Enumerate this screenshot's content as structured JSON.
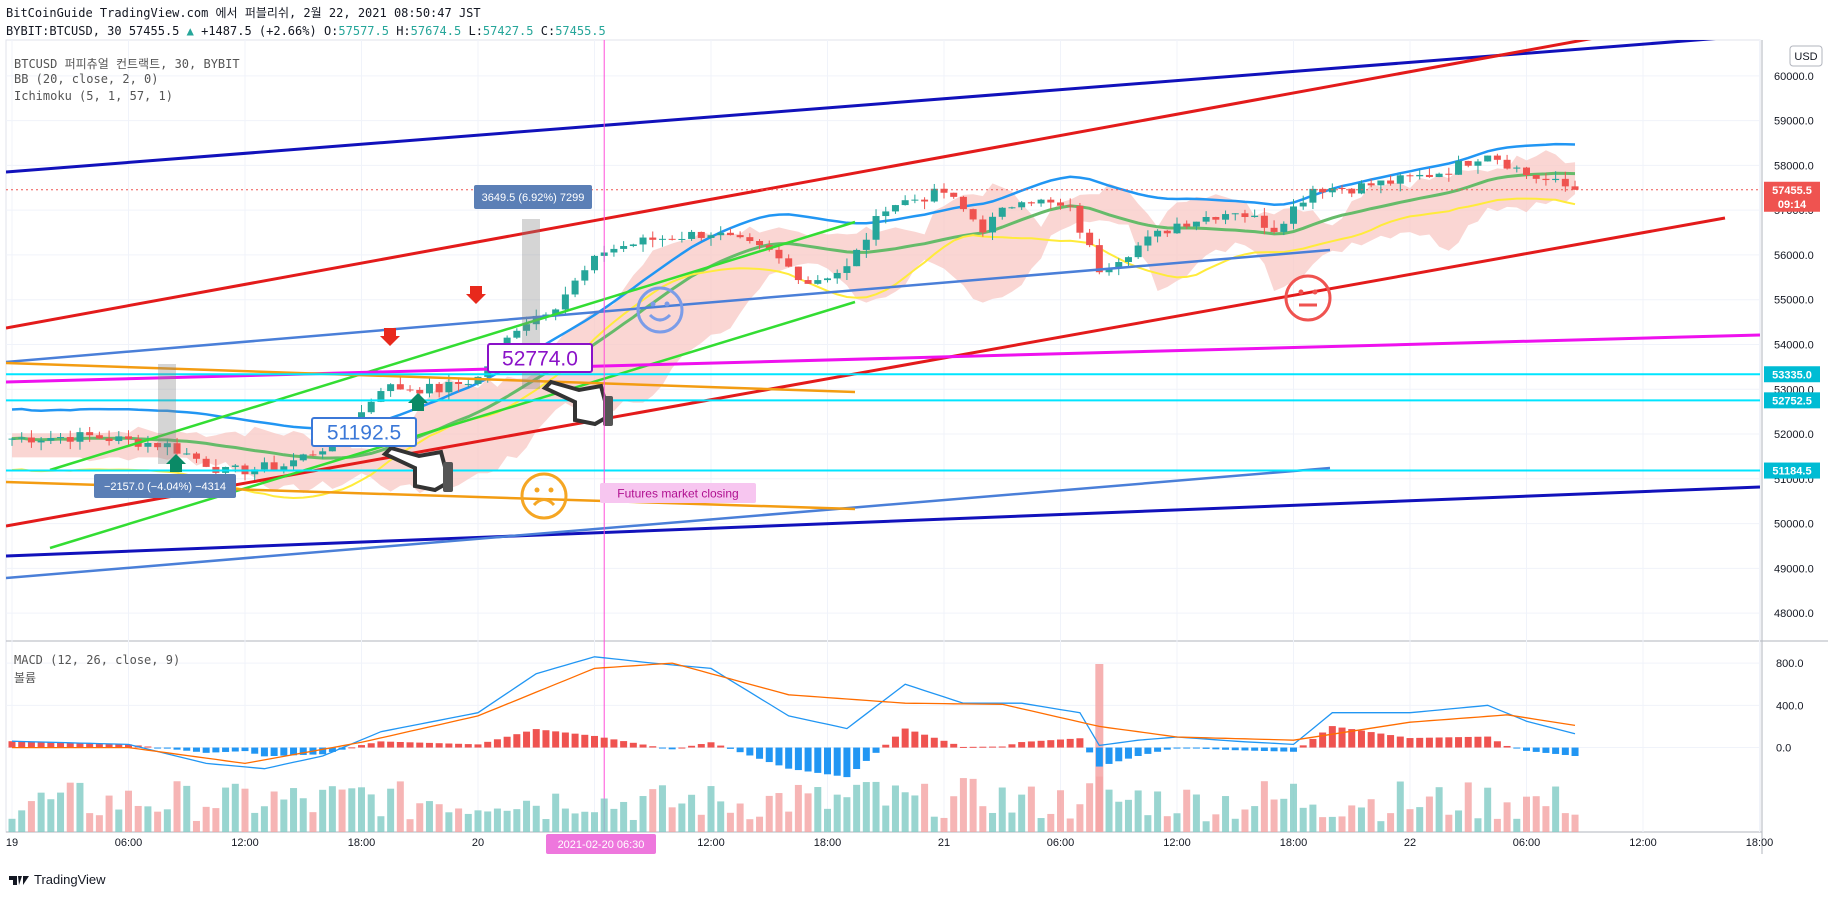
{
  "header": {
    "line1": "BitCoinGuide TradingView.com 에서 퍼블리쉬, 2월 22, 2021 08:50:47 JST",
    "symbol": "BYBIT:BTCUSD, 30",
    "last": "57455.5",
    "change": "+1487.5 (+2.66%)",
    "o_label": "O:",
    "o": "57577.5",
    "h_label": "H:",
    "h": "57674.5",
    "l_label": "L:",
    "l": "57427.5",
    "c_label": "C:",
    "c": "57455.5"
  },
  "legends": {
    "title": "BTCUSD 퍼피츄얼 컨트랙트, 30, BYBIT",
    "bb": "BB (20, close, 2, 0)",
    "ichimoku": "Ichimoku (5, 1, 57, 1)",
    "macd": "MACD (12, 26, close, 9)",
    "volume": "볼륨"
  },
  "currency_button": "USD",
  "price_tags": [
    {
      "value": "57455.5",
      "sub": "09:14",
      "color": "#ef5350"
    },
    {
      "value": "53335.0",
      "color": "#00bcd4"
    },
    {
      "value": "52752.5",
      "color": "#00bcd4"
    },
    {
      "value": "51184.5",
      "color": "#00bcd4"
    }
  ],
  "annotations": {
    "range_up": "3649.5 (6.92%) 7299",
    "range_down": "−2157.0 (−4.04%) −4314",
    "label_52774": "52774.0",
    "label_51192": "51192.5",
    "futures": "Futures market closing",
    "crosshair_time": "2021-02-20   06:30"
  },
  "footer": {
    "brand": "TradingView"
  },
  "colors": {
    "up": "#26a69a",
    "down": "#ef5350",
    "bb_upper": "#2196f3",
    "bb_basis": "#66bb6a",
    "ichimoku_lead": "#ffeb3b",
    "cloud": "#f8c8c4",
    "red_line": "#e31b1b",
    "navy": "#1111bb",
    "steel": "#4a7fd8",
    "green": "#33dd33",
    "magenta": "#ee11ee",
    "orange": "#f39c12",
    "cyan": "#00e5ff",
    "macd": "#2196f3",
    "signal": "#ff6d00",
    "hist_up": "#ef5350",
    "hist_down": "#2196f3",
    "vol_up": "#80cbc4",
    "vol_down": "#f4a3a3"
  },
  "chart_data": [
    {
      "type": "candlestick",
      "title": "BTCUSD 퍼피츄얼 컨트랙트, 30, BYBIT",
      "ylim": [
        47400,
        60800
      ],
      "y_ticks": [
        "48000.0",
        "49000.0",
        "50000.0",
        "51000.0",
        "52000.0",
        "53000.0",
        "54000.0",
        "55000.0",
        "56000.0",
        "57000.0",
        "58000.0",
        "59000.0",
        "60000.0"
      ],
      "x_ticks": [
        "19",
        "06:00",
        "12:00",
        "18:00",
        "20",
        "06:00",
        "12:00",
        "18:00",
        "21",
        "06:00",
        "12:00",
        "18:00",
        "22",
        "06:00",
        "12:00",
        "18:00"
      ],
      "x_ticks_time": [
        "2021-02-19 00:00",
        "2021-02-19 06:00",
        "2021-02-19 12:00",
        "2021-02-19 18:00",
        "2021-02-20 00:00",
        "2021-02-20 06:00",
        "2021-02-20 12:00",
        "2021-02-20 18:00",
        "2021-02-21 00:00",
        "2021-02-21 06:00",
        "2021-02-21 12:00",
        "2021-02-21 18:00",
        "2021-02-22 00:00",
        "2021-02-22 06:00",
        "2021-02-22 12:00",
        "2021-02-22 18:00"
      ],
      "price_keypoints": [
        [
          "2021-02-19 00:00",
          51900
        ],
        [
          "2021-02-19 04:00",
          51950
        ],
        [
          "2021-02-19 08:00",
          51750
        ],
        [
          "2021-02-19 11:00",
          51150
        ],
        [
          "2021-02-19 14:00",
          51300
        ],
        [
          "2021-02-19 17:00",
          51900
        ],
        [
          "2021-02-19 19:00",
          53050
        ],
        [
          "2021-02-19 22:00",
          53000
        ],
        [
          "2021-02-20 00:00",
          53250
        ],
        [
          "2021-02-20 02:00",
          54400
        ],
        [
          "2021-02-20 04:00",
          54900
        ],
        [
          "2021-02-20 06:30",
          56100
        ],
        [
          "2021-02-20 09:00",
          56350
        ],
        [
          "2021-02-20 12:00",
          56500
        ],
        [
          "2021-02-20 15:00",
          56050
        ],
        [
          "2021-02-20 17:00",
          55400
        ],
        [
          "2021-02-20 19:00",
          55700
        ],
        [
          "2021-02-20 21:00",
          57100
        ],
        [
          "2021-02-21 00:00",
          57400
        ],
        [
          "2021-02-21 02:00",
          56600
        ],
        [
          "2021-02-21 04:00",
          57300
        ],
        [
          "2021-02-21 06:30",
          57000
        ],
        [
          "2021-02-21 08:00",
          55700
        ],
        [
          "2021-02-21 10:00",
          56200
        ],
        [
          "2021-02-21 12:00",
          56700
        ],
        [
          "2021-02-21 15:00",
          57000
        ],
        [
          "2021-02-21 17:00",
          56600
        ],
        [
          "2021-02-21 19:00",
          57500
        ],
        [
          "2021-02-21 21:00",
          57500
        ],
        [
          "2021-02-22 00:00",
          57700
        ],
        [
          "2021-02-22 02:00",
          57900
        ],
        [
          "2021-02-22 04:00",
          58300
        ],
        [
          "2021-02-22 06:00",
          57800
        ],
        [
          "2021-02-22 08:30",
          57455
        ]
      ],
      "last_price": 57455.5,
      "horizontal_levels": [
        53335.0,
        52752.5,
        51184.5
      ]
    },
    {
      "type": "line",
      "title": "MACD (12, 26, close, 9)",
      "ylim": [
        -800,
        1000
      ],
      "y_ticks": [
        "800.0",
        "400.0",
        "0.0"
      ],
      "macd_keypoints": [
        [
          "2021-02-19 00:00",
          60
        ],
        [
          "2021-02-19 06:00",
          30
        ],
        [
          "2021-02-19 10:00",
          -150
        ],
        [
          "2021-02-19 13:00",
          -200
        ],
        [
          "2021-02-19 16:00",
          -80
        ],
        [
          "2021-02-19 19:00",
          150
        ],
        [
          "2021-02-20 00:00",
          330
        ],
        [
          "2021-02-20 03:00",
          700
        ],
        [
          "2021-02-20 06:00",
          860
        ],
        [
          "2021-02-20 09:00",
          800
        ],
        [
          "2021-02-20 12:00",
          750
        ],
        [
          "2021-02-20 16:00",
          300
        ],
        [
          "2021-02-20 19:00",
          180
        ],
        [
          "2021-02-20 22:00",
          600
        ],
        [
          "2021-02-21 01:00",
          420
        ],
        [
          "2021-02-21 04:00",
          420
        ],
        [
          "2021-02-21 07:00",
          330
        ],
        [
          "2021-02-21 08:00",
          20
        ],
        [
          "2021-02-21 10:00",
          70
        ],
        [
          "2021-02-21 12:00",
          100
        ],
        [
          "2021-02-21 15:00",
          60
        ],
        [
          "2021-02-21 18:00",
          30
        ],
        [
          "2021-02-21 20:00",
          330
        ],
        [
          "2021-02-22 00:00",
          330
        ],
        [
          "2021-02-22 04:00",
          400
        ],
        [
          "2021-02-22 06:00",
          250
        ],
        [
          "2021-02-22 08:30",
          130
        ]
      ],
      "signal_keypoints": [
        [
          "2021-02-19 00:00",
          0
        ],
        [
          "2021-02-19 06:00",
          0
        ],
        [
          "2021-02-19 12:00",
          -150
        ],
        [
          "2021-02-19 18:00",
          50
        ],
        [
          "2021-02-20 00:00",
          300
        ],
        [
          "2021-02-20 06:00",
          750
        ],
        [
          "2021-02-20 10:00",
          800
        ],
        [
          "2021-02-20 16:00",
          500
        ],
        [
          "2021-02-20 22:00",
          420
        ],
        [
          "2021-02-21 03:00",
          410
        ],
        [
          "2021-02-21 08:00",
          200
        ],
        [
          "2021-02-21 12:00",
          100
        ],
        [
          "2021-02-21 18:00",
          70
        ],
        [
          "2021-02-22 00:00",
          240
        ],
        [
          "2021-02-22 05:00",
          310
        ],
        [
          "2021-02-22 08:30",
          210
        ]
      ]
    }
  ]
}
